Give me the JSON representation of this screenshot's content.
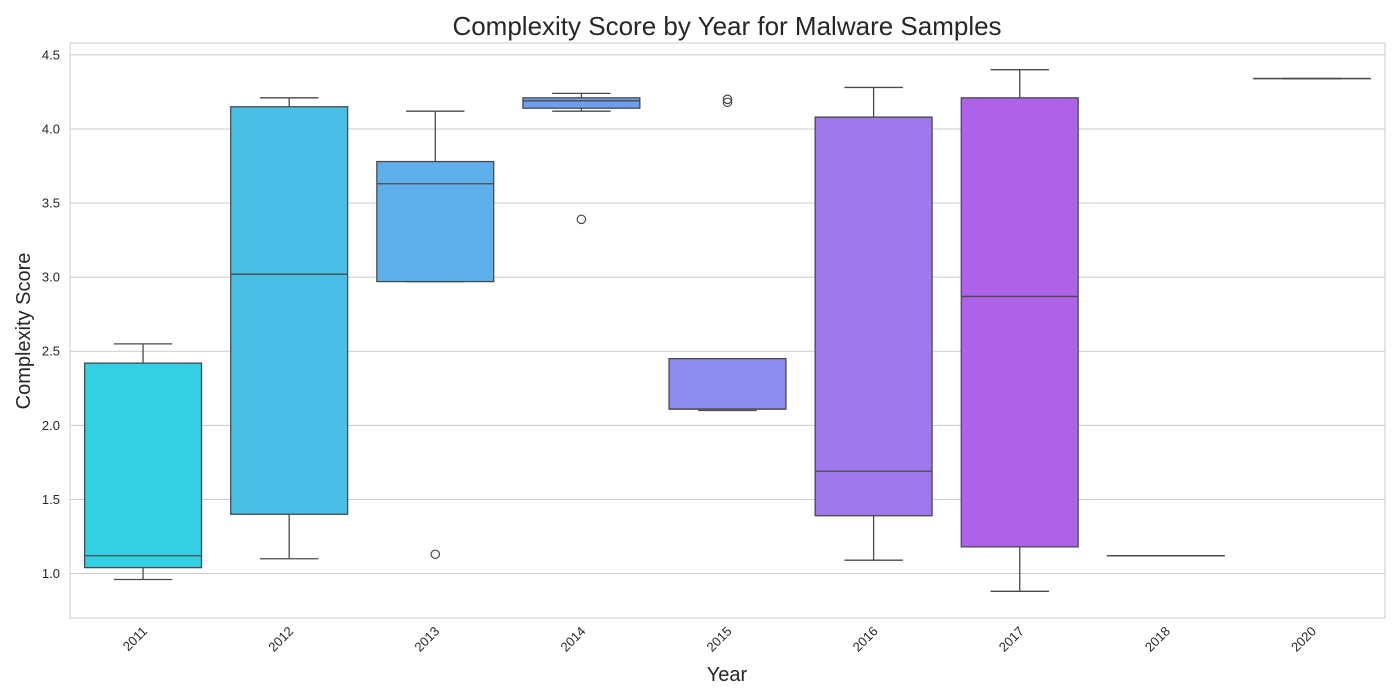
{
  "chart_data": {
    "type": "box",
    "title": "Complexity Score by Year for Malware Samples",
    "xlabel": "Year",
    "ylabel": "Complexity Score",
    "ylim": [
      0.7,
      4.58
    ],
    "yticks": [
      "1.0",
      "1.5",
      "2.0",
      "2.5",
      "3.0",
      "3.5",
      "4.0",
      "4.5"
    ],
    "grid": true,
    "categories": [
      "2011",
      "2012",
      "2013",
      "2014",
      "2015",
      "2016",
      "2017",
      "2018",
      "2020"
    ],
    "boxes": [
      {
        "category": "2011",
        "whisker_low": 0.96,
        "q1": 1.04,
        "median": 1.12,
        "q3": 2.42,
        "whisker_high": 2.55,
        "outliers": [],
        "color": "#33d0e3"
      },
      {
        "category": "2012",
        "whisker_low": 1.1,
        "q1": 1.4,
        "median": 3.02,
        "q3": 4.15,
        "whisker_high": 4.21,
        "outliers": [],
        "color": "#4abfe6"
      },
      {
        "category": "2013",
        "whisker_low": 2.97,
        "q1": 2.97,
        "median": 3.63,
        "q3": 3.78,
        "whisker_high": 4.12,
        "outliers": [
          1.13
        ],
        "color": "#5fb0ea"
      },
      {
        "category": "2014",
        "whisker_low": 4.12,
        "q1": 4.14,
        "median": 4.19,
        "q3": 4.21,
        "whisker_high": 4.24,
        "outliers": [
          3.39
        ],
        "color": "#6e9fee"
      },
      {
        "category": "2015",
        "whisker_low": 2.1,
        "q1": 2.11,
        "median": 2.11,
        "q3": 2.45,
        "whisker_high": 2.45,
        "outliers": [
          4.18,
          4.2
        ],
        "color": "#8e8cf0"
      },
      {
        "category": "2016",
        "whisker_low": 1.09,
        "q1": 1.39,
        "median": 1.69,
        "q3": 4.08,
        "whisker_high": 4.28,
        "outliers": [],
        "color": "#9e78ec"
      },
      {
        "category": "2017",
        "whisker_low": 0.88,
        "q1": 1.18,
        "median": 2.87,
        "q3": 4.21,
        "whisker_high": 4.4,
        "outliers": [],
        "color": "#ae62e8"
      },
      {
        "category": "2018",
        "whisker_low": 1.12,
        "q1": 1.12,
        "median": 1.12,
        "q3": 1.12,
        "whisker_high": 1.12,
        "outliers": [],
        "color": "#bf55e6"
      },
      {
        "category": "2020",
        "whisker_low": 4.34,
        "q1": 4.34,
        "median": 4.34,
        "q3": 4.34,
        "whisker_high": 4.34,
        "outliers": [],
        "color": "#c94be2"
      }
    ]
  }
}
